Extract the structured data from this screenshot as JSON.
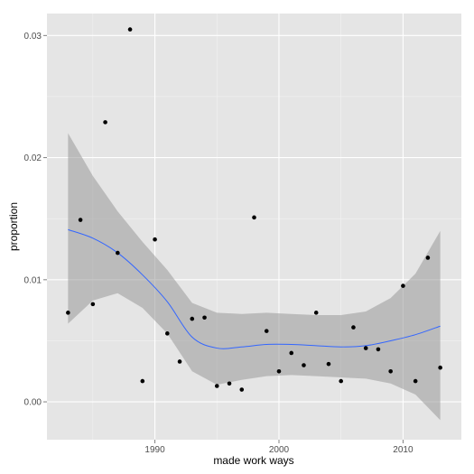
{
  "chart_data": {
    "type": "scatter",
    "xlabel": "made work ways",
    "ylabel": "proportion",
    "xlim": [
      1981.3,
      2014.7
    ],
    "ylim": [
      -0.0031,
      0.0318
    ],
    "x_ticks": [
      1990,
      2000,
      2010
    ],
    "y_ticks": [
      0.0,
      0.01,
      0.02,
      0.03
    ],
    "x_tick_labels": [
      "1990",
      "2000",
      "2010"
    ],
    "y_tick_labels": [
      "0.00",
      "0.01",
      "0.02",
      "0.03"
    ],
    "grid": true,
    "legend": "none",
    "points": [
      {
        "x": 1983,
        "y": 0.0073
      },
      {
        "x": 1984,
        "y": 0.0149
      },
      {
        "x": 1985,
        "y": 0.008
      },
      {
        "x": 1986,
        "y": 0.0229
      },
      {
        "x": 1987,
        "y": 0.0122
      },
      {
        "x": 1988,
        "y": 0.0305
      },
      {
        "x": 1989,
        "y": 0.0017
      },
      {
        "x": 1990,
        "y": 0.0133
      },
      {
        "x": 1991,
        "y": 0.0056
      },
      {
        "x": 1992,
        "y": 0.0033
      },
      {
        "x": 1993,
        "y": 0.0068
      },
      {
        "x": 1994,
        "y": 0.0069
      },
      {
        "x": 1995,
        "y": 0.0013
      },
      {
        "x": 1996,
        "y": 0.0015
      },
      {
        "x": 1997,
        "y": 0.001
      },
      {
        "x": 1998,
        "y": 0.0151
      },
      {
        "x": 1999,
        "y": 0.0058
      },
      {
        "x": 2000,
        "y": 0.0025
      },
      {
        "x": 2001,
        "y": 0.004
      },
      {
        "x": 2002,
        "y": 0.003
      },
      {
        "x": 2003,
        "y": 0.0073
      },
      {
        "x": 2004,
        "y": 0.0031
      },
      {
        "x": 2005,
        "y": 0.0017
      },
      {
        "x": 2006,
        "y": 0.0061
      },
      {
        "x": 2007,
        "y": 0.0044
      },
      {
        "x": 2008,
        "y": 0.0043
      },
      {
        "x": 2009,
        "y": 0.0025
      },
      {
        "x": 2010,
        "y": 0.0095
      },
      {
        "x": 2011,
        "y": 0.0017
      },
      {
        "x": 2012,
        "y": 0.0118
      },
      {
        "x": 2013,
        "y": 0.0028
      }
    ],
    "smooth": {
      "x": [
        1983,
        1985,
        1987,
        1989,
        1991,
        1993,
        1995,
        1997,
        1999,
        2001,
        2003,
        2005,
        2007,
        2009,
        2011,
        2013
      ],
      "y": [
        0.0141,
        0.0134,
        0.0122,
        0.0104,
        0.0082,
        0.0053,
        0.0044,
        0.0045,
        0.0047,
        0.0047,
        0.0046,
        0.0045,
        0.0046,
        0.005,
        0.0055,
        0.0062
      ],
      "lower": [
        0.0064,
        0.0083,
        0.0089,
        0.0077,
        0.0056,
        0.0025,
        0.0014,
        0.0018,
        0.0021,
        0.0022,
        0.0021,
        0.002,
        0.0019,
        0.0015,
        0.0006,
        -0.0015
      ],
      "upper": [
        0.022,
        0.0185,
        0.0156,
        0.0131,
        0.0108,
        0.0081,
        0.0073,
        0.0072,
        0.0073,
        0.0072,
        0.0071,
        0.0071,
        0.0074,
        0.0085,
        0.0105,
        0.014
      ]
    },
    "colors": {
      "panel": "#e5e5e5",
      "grid_major": "#ffffff",
      "grid_minor": "#f2f2f2",
      "band": "#999999",
      "line": "#3366ff",
      "point": "#000000"
    }
  }
}
